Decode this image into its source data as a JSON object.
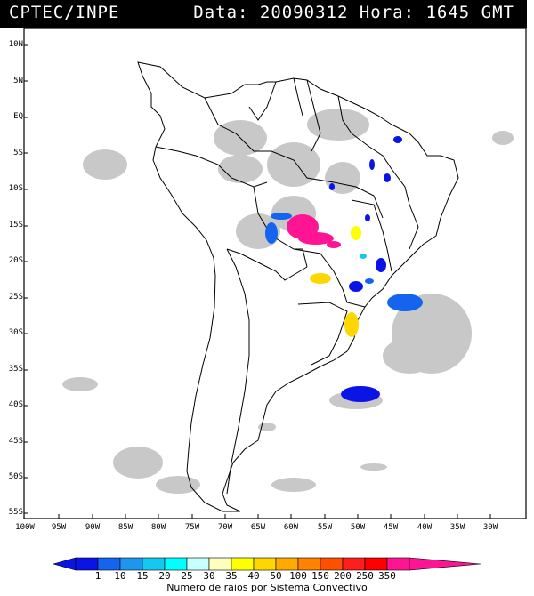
{
  "header": {
    "title": "CPTEC/INPE",
    "datetime": "Data: 20090312 Hora: 1645 GMT"
  },
  "axes": {
    "lat_labels": [
      "10N",
      "5N",
      "EQ",
      "5S",
      "10S",
      "15S",
      "20S",
      "25S",
      "30S",
      "35S",
      "40S",
      "45S",
      "50S",
      "55S"
    ],
    "lon_labels": [
      "100W",
      "95W",
      "90W",
      "85W",
      "80W",
      "75W",
      "70W",
      "65W",
      "60W",
      "55W",
      "50W",
      "45W",
      "40W",
      "35W",
      "30W"
    ]
  },
  "colorbar": {
    "labels": [
      "1",
      "10",
      "15",
      "20",
      "25",
      "30",
      "35",
      "40",
      "50",
      "100",
      "150",
      "200",
      "250",
      "350"
    ],
    "colors": [
      "#0a14e6",
      "#1464f0",
      "#1e96f0",
      "#14c8f0",
      "#00ffff",
      "#c8ffff",
      "#ffffbe",
      "#ffff00",
      "#ffd700",
      "#ffaa00",
      "#ff8200",
      "#ff5000",
      "#ff1e1e",
      "#ff0000",
      "#ff1493"
    ],
    "title": "Numero de raios por Sistema Convectivo"
  }
}
